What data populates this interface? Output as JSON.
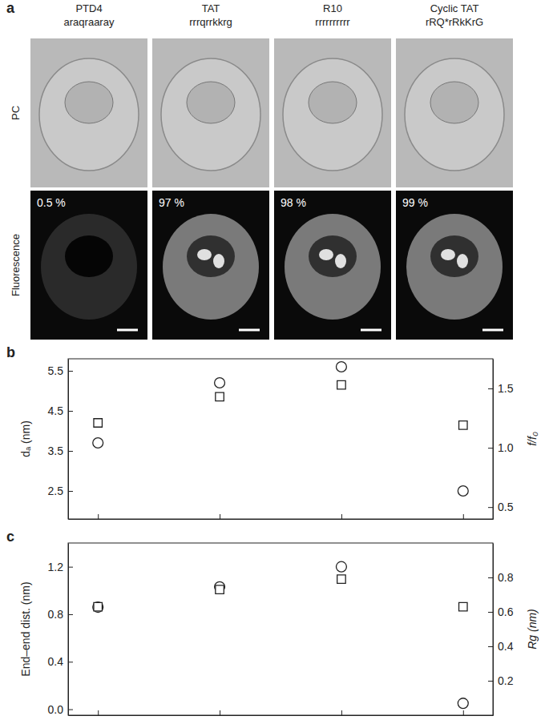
{
  "chart_data": [
    {
      "type": "image_grid",
      "title": "a",
      "columns": [
        "PTD4",
        "TAT",
        "R10",
        "Cyclic TAT"
      ],
      "sequences": [
        "araqraaray",
        "rrrqrrkkrg",
        "rrrrrrrrrr",
        "rRQ*rRkKrG"
      ],
      "rows": [
        "PC",
        "Fluorescence"
      ],
      "values": [
        0.5,
        97,
        98,
        99
      ],
      "value_labels": [
        "0.5 %",
        "97 %",
        "98 %",
        "99 %"
      ]
    },
    {
      "type": "scatter",
      "title": "b",
      "categories": [
        null,
        null,
        null,
        null
      ],
      "y_label": "dₐ (nm)",
      "y2_label": "f/f₀",
      "ylim": [
        1.8,
        5.8
      ],
      "yticks": [
        2.5,
        3.5,
        4.5,
        5.5
      ],
      "y2lim": [
        0.4,
        1.75
      ],
      "y2ticks": [
        0.5,
        {
          "value": 1.0,
          "label": "1.0"
        },
        1.5
      ],
      "series": [
        {
          "marker": "circle",
          "color": "#222222",
          "values": [
            3.7,
            5.2,
            5.6,
            2.5
          ]
        },
        {
          "marker": "square",
          "color": "#222222",
          "axis": "y2",
          "values": [
            1.21,
            1.43,
            1.53,
            1.19
          ]
        }
      ]
    },
    {
      "type": "scatter",
      "title": "c",
      "categories": [
        null,
        null,
        null,
        null
      ],
      "y_label": "End–end dist. (nm)",
      "y2_label": "Rg (nm)",
      "ylim": [
        -0.05,
        1.4
      ],
      "yticks": [
        {
          "value": 0.0,
          "label": "0.0"
        },
        0.4,
        0.8,
        1.2
      ],
      "y2lim": [
        0,
        1.0
      ],
      "y2ticks": [
        0.2,
        0.4,
        0.6,
        0.8
      ],
      "series": [
        {
          "marker": "circle",
          "color": "#222222",
          "values": [
            0.86,
            1.03,
            1.2,
            0.05
          ]
        },
        {
          "marker": "square",
          "color": "#222222",
          "axis": "y2",
          "values": [
            0.63,
            0.73,
            0.79,
            0.63
          ]
        }
      ]
    }
  ]
}
